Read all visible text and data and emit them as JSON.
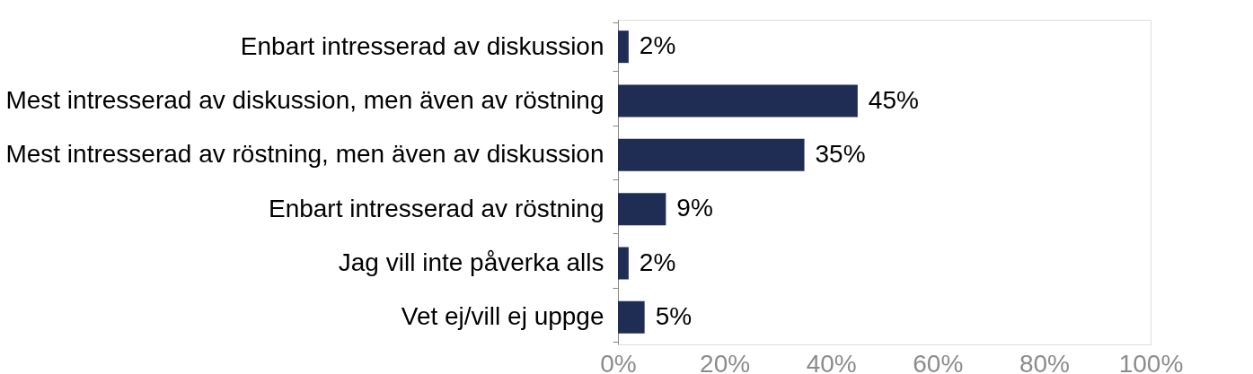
{
  "chart_data": {
    "type": "bar",
    "orientation": "horizontal",
    "categories": [
      "Enbart intresserad av diskussion",
      "Mest intresserad av diskussion, men även av röstning",
      "Mest intresserad av röstning, men även av diskussion",
      "Enbart intresserad av röstning",
      "Jag vill inte påverka alls",
      "Vet ej/vill ej uppge"
    ],
    "values": [
      2,
      45,
      35,
      9,
      2,
      5
    ],
    "value_labels": [
      "2%",
      "45%",
      "35%",
      "9%",
      "2%",
      "5%"
    ],
    "color": "#1f2d54",
    "xlim": [
      0,
      100
    ],
    "xticks": [
      {
        "value": 0,
        "label": "0%"
      },
      {
        "value": 20,
        "label": "20%"
      },
      {
        "value": 40,
        "label": "40%"
      },
      {
        "value": 60,
        "label": "60%"
      },
      {
        "value": 80,
        "label": "80%"
      },
      {
        "value": 100,
        "label": "100%"
      }
    ],
    "grid": false
  }
}
